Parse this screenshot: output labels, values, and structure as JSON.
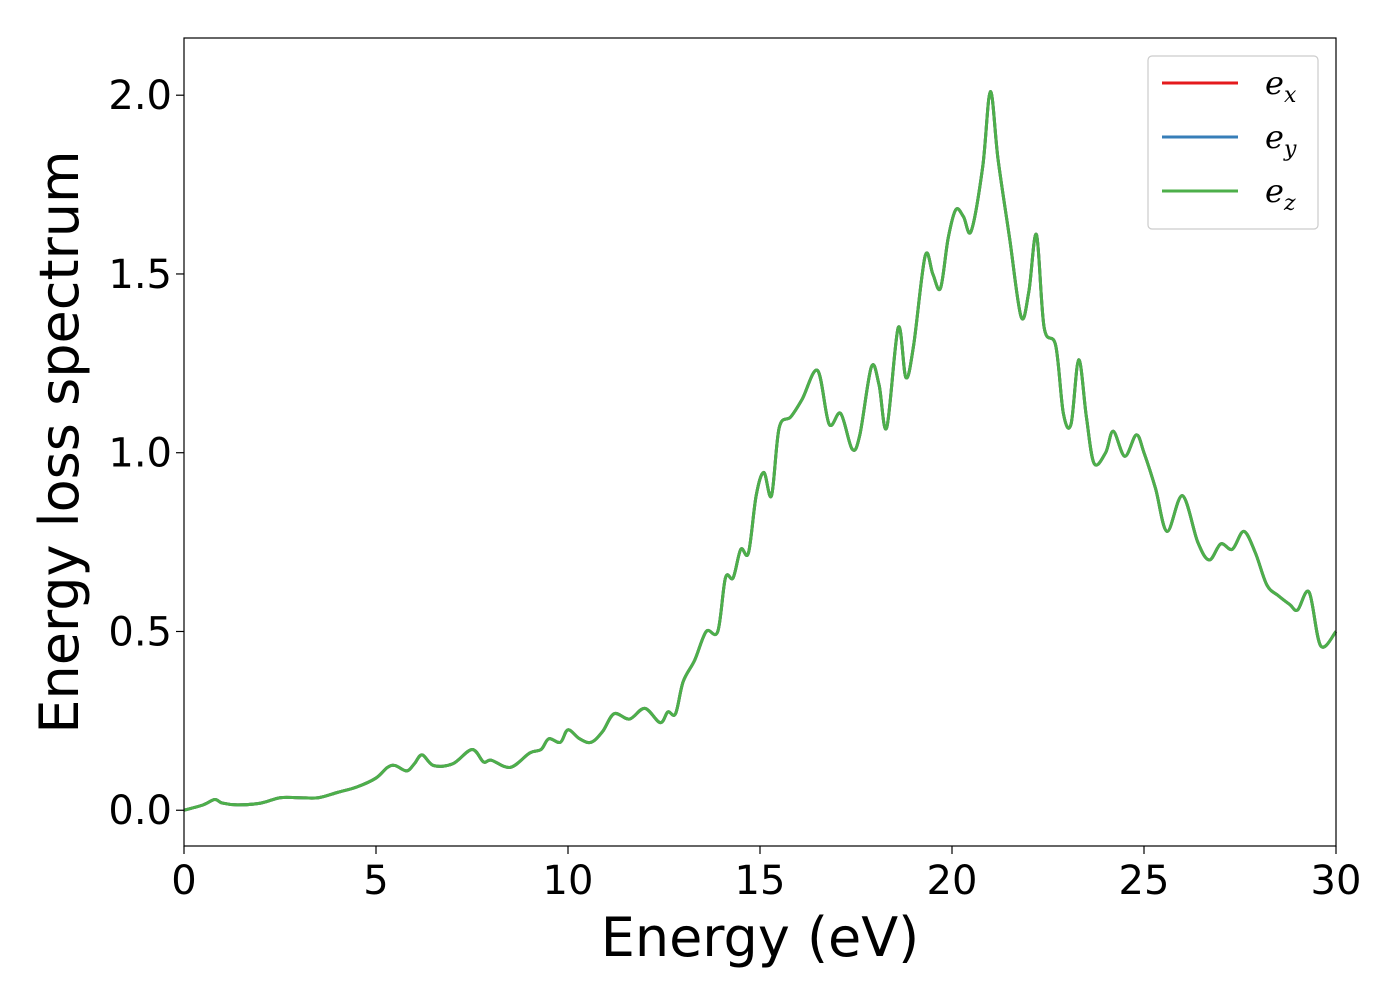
{
  "chart_data": {
    "type": "line",
    "title": "",
    "xlabel": "Energy (eV)",
    "ylabel": "Energy loss spectrum",
    "xlim": [
      0,
      30
    ],
    "ylim": [
      -0.1,
      2.16
    ],
    "xticks": [
      0,
      5,
      10,
      15,
      20,
      25,
      30
    ],
    "xtick_labels": [
      "0",
      "5",
      "10",
      "15",
      "20",
      "25",
      "30"
    ],
    "yticks": [
      0.0,
      0.5,
      1.0,
      1.5,
      2.0
    ],
    "ytick_labels": [
      "0.0",
      "0.5",
      "1.0",
      "1.5",
      "2.0"
    ],
    "grid": false,
    "legend": {
      "position": "top-right",
      "entries": [
        {
          "base": "e",
          "sub": "x",
          "color": "#e41a1c"
        },
        {
          "base": "e",
          "sub": "y",
          "color": "#377eb8"
        },
        {
          "base": "e",
          "sub": "z",
          "color": "#4daf4a"
        }
      ]
    },
    "x": [
      0,
      0.5,
      0.8,
      1.0,
      1.4,
      2.0,
      2.5,
      3.0,
      3.5,
      4.0,
      4.5,
      5.0,
      5.3,
      5.5,
      5.8,
      6.0,
      6.2,
      6.5,
      7.0,
      7.5,
      7.8,
      8.0,
      8.5,
      9.0,
      9.3,
      9.5,
      9.8,
      10.0,
      10.3,
      10.6,
      10.9,
      11.2,
      11.6,
      12.0,
      12.4,
      12.6,
      12.8,
      13.0,
      13.3,
      13.6,
      13.9,
      14.1,
      14.3,
      14.5,
      14.7,
      14.9,
      15.1,
      15.3,
      15.5,
      15.8,
      16.1,
      16.5,
      16.8,
      17.1,
      17.4,
      17.6,
      17.9,
      18.1,
      18.3,
      18.6,
      18.8,
      19.0,
      19.3,
      19.5,
      19.7,
      19.9,
      20.1,
      20.3,
      20.5,
      20.8,
      21.0,
      21.2,
      21.5,
      21.8,
      22.0,
      22.2,
      22.4,
      22.7,
      22.9,
      23.1,
      23.3,
      23.5,
      23.7,
      24.0,
      24.2,
      24.5,
      24.8,
      25.0,
      25.3,
      25.6,
      26.0,
      26.4,
      26.7,
      27.0,
      27.3,
      27.6,
      27.9,
      28.2,
      28.5,
      28.8,
      29.0,
      29.3,
      29.6,
      30.0
    ],
    "series": [
      {
        "name": "e_x",
        "color": "#e41a1c",
        "y": [
          0.0,
          0.015,
          0.03,
          0.02,
          0.015,
          0.02,
          0.035,
          0.035,
          0.035,
          0.05,
          0.065,
          0.09,
          0.12,
          0.125,
          0.11,
          0.13,
          0.155,
          0.125,
          0.13,
          0.17,
          0.135,
          0.14,
          0.12,
          0.16,
          0.17,
          0.2,
          0.19,
          0.225,
          0.2,
          0.19,
          0.22,
          0.27,
          0.255,
          0.285,
          0.245,
          0.275,
          0.27,
          0.36,
          0.42,
          0.5,
          0.5,
          0.65,
          0.65,
          0.73,
          0.72,
          0.88,
          0.945,
          0.88,
          1.07,
          1.1,
          1.15,
          1.23,
          1.08,
          1.11,
          1.01,
          1.05,
          1.24,
          1.19,
          1.07,
          1.35,
          1.21,
          1.3,
          1.55,
          1.5,
          1.46,
          1.6,
          1.68,
          1.66,
          1.62,
          1.8,
          2.01,
          1.82,
          1.6,
          1.38,
          1.45,
          1.61,
          1.35,
          1.3,
          1.11,
          1.08,
          1.26,
          1.1,
          0.97,
          1.0,
          1.06,
          0.99,
          1.05,
          1.0,
          0.9,
          0.78,
          0.88,
          0.75,
          0.7,
          0.745,
          0.73,
          0.78,
          0.72,
          0.63,
          0.6,
          0.575,
          0.56,
          0.61,
          0.46,
          0.5
        ]
      },
      {
        "name": "e_y",
        "color": "#377eb8",
        "y": [
          0.0,
          0.015,
          0.03,
          0.02,
          0.015,
          0.02,
          0.035,
          0.035,
          0.035,
          0.05,
          0.065,
          0.09,
          0.12,
          0.125,
          0.11,
          0.13,
          0.155,
          0.125,
          0.13,
          0.17,
          0.135,
          0.14,
          0.12,
          0.16,
          0.17,
          0.2,
          0.19,
          0.225,
          0.2,
          0.19,
          0.22,
          0.27,
          0.255,
          0.285,
          0.245,
          0.275,
          0.27,
          0.36,
          0.42,
          0.5,
          0.5,
          0.65,
          0.65,
          0.73,
          0.72,
          0.88,
          0.945,
          0.88,
          1.07,
          1.1,
          1.15,
          1.23,
          1.08,
          1.11,
          1.01,
          1.05,
          1.24,
          1.19,
          1.07,
          1.35,
          1.21,
          1.3,
          1.55,
          1.5,
          1.46,
          1.6,
          1.68,
          1.66,
          1.62,
          1.8,
          2.01,
          1.82,
          1.6,
          1.38,
          1.45,
          1.61,
          1.35,
          1.3,
          1.11,
          1.08,
          1.26,
          1.1,
          0.97,
          1.0,
          1.06,
          0.99,
          1.05,
          1.0,
          0.9,
          0.78,
          0.88,
          0.75,
          0.7,
          0.745,
          0.73,
          0.78,
          0.72,
          0.63,
          0.6,
          0.575,
          0.56,
          0.61,
          0.46,
          0.5
        ]
      },
      {
        "name": "e_z",
        "color": "#4daf4a",
        "y": [
          0.0,
          0.015,
          0.03,
          0.02,
          0.015,
          0.02,
          0.035,
          0.035,
          0.035,
          0.05,
          0.065,
          0.09,
          0.12,
          0.125,
          0.11,
          0.13,
          0.155,
          0.125,
          0.13,
          0.17,
          0.135,
          0.14,
          0.12,
          0.16,
          0.17,
          0.2,
          0.19,
          0.225,
          0.2,
          0.19,
          0.22,
          0.27,
          0.255,
          0.285,
          0.245,
          0.275,
          0.27,
          0.36,
          0.42,
          0.5,
          0.5,
          0.65,
          0.65,
          0.73,
          0.72,
          0.88,
          0.945,
          0.88,
          1.07,
          1.1,
          1.15,
          1.23,
          1.08,
          1.11,
          1.01,
          1.05,
          1.24,
          1.19,
          1.07,
          1.35,
          1.21,
          1.3,
          1.55,
          1.5,
          1.46,
          1.6,
          1.68,
          1.66,
          1.62,
          1.8,
          2.01,
          1.82,
          1.6,
          1.38,
          1.45,
          1.61,
          1.35,
          1.3,
          1.11,
          1.08,
          1.26,
          1.1,
          0.97,
          1.0,
          1.06,
          0.99,
          1.05,
          1.0,
          0.9,
          0.78,
          0.88,
          0.75,
          0.7,
          0.745,
          0.73,
          0.78,
          0.72,
          0.63,
          0.6,
          0.575,
          0.56,
          0.61,
          0.46,
          0.5
        ]
      }
    ]
  }
}
